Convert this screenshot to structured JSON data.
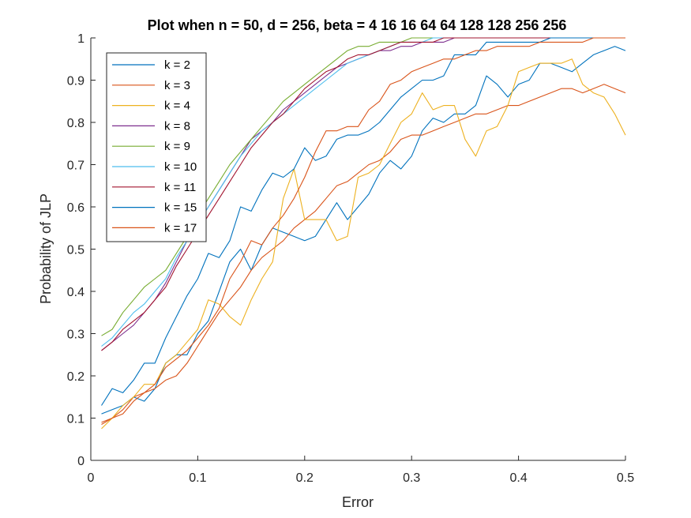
{
  "chart_data": {
    "type": "line",
    "title": "Plot when n = 50, d = 256, beta = 4   16   16   64   64   128   128   256   256",
    "xlabel": "Error",
    "ylabel": "Probability of JLP",
    "xlim": [
      0,
      0.5
    ],
    "ylim": [
      0,
      1
    ],
    "xticks": [
      "0",
      "0.1",
      "0.2",
      "0.3",
      "0.4",
      "0.5"
    ],
    "yticks": [
      "0",
      "0.1",
      "0.2",
      "0.3",
      "0.4",
      "0.5",
      "0.6",
      "0.7",
      "0.8",
      "0.9",
      "1"
    ],
    "grid": false,
    "legend_position": "top-left",
    "x": [
      0.01,
      0.02,
      0.03,
      0.04,
      0.05,
      0.06,
      0.07,
      0.08,
      0.09,
      0.1,
      0.11,
      0.12,
      0.13,
      0.14,
      0.15,
      0.16,
      0.17,
      0.18,
      0.19,
      0.2,
      0.21,
      0.22,
      0.23,
      0.24,
      0.25,
      0.26,
      0.27,
      0.28,
      0.29,
      0.3,
      0.31,
      0.32,
      0.33,
      0.34,
      0.35,
      0.36,
      0.37,
      0.38,
      0.39,
      0.4,
      0.41,
      0.42,
      0.43,
      0.44,
      0.45,
      0.46,
      0.47,
      0.48,
      0.49,
      0.5
    ],
    "series": [
      {
        "name": "k = 2",
        "color": "#0072BD",
        "values": [
          0.11,
          0.12,
          0.13,
          0.15,
          0.14,
          0.17,
          0.23,
          0.25,
          0.25,
          0.3,
          0.33,
          0.4,
          0.47,
          0.5,
          0.45,
          0.51,
          0.55,
          0.54,
          0.53,
          0.52,
          0.53,
          0.57,
          0.61,
          0.57,
          0.6,
          0.63,
          0.68,
          0.71,
          0.69,
          0.72,
          0.78,
          0.81,
          0.8,
          0.82,
          0.82,
          0.84,
          0.91,
          0.89,
          0.86,
          0.89,
          0.9,
          0.94,
          0.94,
          0.93,
          0.92,
          0.94,
          0.96,
          0.97,
          0.98,
          0.97
        ]
      },
      {
        "name": "k = 3",
        "color": "#D95319",
        "values": [
          0.085,
          0.1,
          0.12,
          0.15,
          0.16,
          0.17,
          0.19,
          0.2,
          0.23,
          0.27,
          0.31,
          0.35,
          0.38,
          0.41,
          0.45,
          0.48,
          0.5,
          0.52,
          0.55,
          0.57,
          0.59,
          0.62,
          0.65,
          0.66,
          0.68,
          0.7,
          0.71,
          0.73,
          0.76,
          0.77,
          0.77,
          0.78,
          0.79,
          0.8,
          0.81,
          0.82,
          0.82,
          0.83,
          0.84,
          0.84,
          0.85,
          0.86,
          0.87,
          0.88,
          0.88,
          0.87,
          0.88,
          0.89,
          0.88,
          0.87
        ]
      },
      {
        "name": "k = 4",
        "color": "#EDB120",
        "values": [
          0.075,
          0.1,
          0.13,
          0.15,
          0.18,
          0.18,
          0.23,
          0.25,
          0.28,
          0.31,
          0.38,
          0.37,
          0.34,
          0.32,
          0.38,
          0.43,
          0.47,
          0.62,
          0.69,
          0.57,
          0.57,
          0.57,
          0.52,
          0.53,
          0.67,
          0.68,
          0.7,
          0.75,
          0.8,
          0.82,
          0.87,
          0.83,
          0.84,
          0.84,
          0.76,
          0.72,
          0.78,
          0.79,
          0.84,
          0.92,
          0.93,
          0.94,
          0.94,
          0.94,
          0.95,
          0.89,
          0.87,
          0.86,
          0.82,
          0.77
        ]
      },
      {
        "name": "k = 8",
        "color": "#7E2F8E",
        "values": [
          0.26,
          0.28,
          0.3,
          0.32,
          0.35,
          0.38,
          0.42,
          0.47,
          0.52,
          0.56,
          0.6,
          0.64,
          0.68,
          0.72,
          0.76,
          0.78,
          0.8,
          0.83,
          0.85,
          0.87,
          0.89,
          0.91,
          0.93,
          0.94,
          0.95,
          0.96,
          0.97,
          0.97,
          0.98,
          0.98,
          0.99,
          0.99,
          0.99,
          1,
          1,
          1,
          1,
          1,
          1,
          1,
          1,
          1,
          1,
          1,
          1,
          1,
          1,
          1,
          1,
          1
        ]
      },
      {
        "name": "k = 9",
        "color": "#77AC30",
        "values": [
          0.295,
          0.31,
          0.35,
          0.38,
          0.41,
          0.43,
          0.45,
          0.49,
          0.53,
          0.58,
          0.62,
          0.66,
          0.7,
          0.73,
          0.76,
          0.79,
          0.82,
          0.85,
          0.87,
          0.89,
          0.91,
          0.93,
          0.95,
          0.97,
          0.98,
          0.98,
          0.99,
          0.99,
          0.99,
          1,
          1,
          1,
          1,
          1,
          1,
          1,
          1,
          1,
          1,
          1,
          1,
          1,
          1,
          1,
          1,
          1,
          1,
          1,
          1,
          1
        ]
      },
      {
        "name": "k = 10",
        "color": "#4DBEEE",
        "values": [
          0.27,
          0.29,
          0.32,
          0.35,
          0.37,
          0.4,
          0.43,
          0.48,
          0.52,
          0.56,
          0.6,
          0.64,
          0.68,
          0.72,
          0.75,
          0.78,
          0.8,
          0.82,
          0.84,
          0.86,
          0.88,
          0.9,
          0.92,
          0.94,
          0.95,
          0.96,
          0.97,
          0.98,
          0.99,
          0.99,
          0.99,
          1,
          1,
          1,
          1,
          1,
          1,
          1,
          1,
          1,
          1,
          1,
          1,
          1,
          1,
          1,
          1,
          1,
          1,
          1
        ]
      },
      {
        "name": "k = 11",
        "color": "#A2142F",
        "values": [
          0.26,
          0.28,
          0.31,
          0.33,
          0.35,
          0.38,
          0.41,
          0.46,
          0.5,
          0.54,
          0.58,
          0.62,
          0.66,
          0.7,
          0.74,
          0.77,
          0.8,
          0.82,
          0.85,
          0.88,
          0.9,
          0.92,
          0.93,
          0.95,
          0.96,
          0.96,
          0.97,
          0.98,
          0.99,
          0.99,
          0.99,
          0.99,
          1,
          1,
          1,
          1,
          1,
          1,
          1,
          1,
          1,
          1,
          1,
          1,
          1,
          1,
          1,
          1,
          1,
          1
        ]
      },
      {
        "name": "k = 15",
        "color": "#0072BD",
        "values": [
          0.13,
          0.17,
          0.16,
          0.19,
          0.23,
          0.23,
          0.29,
          0.34,
          0.39,
          0.43,
          0.49,
          0.48,
          0.52,
          0.6,
          0.59,
          0.64,
          0.68,
          0.67,
          0.69,
          0.74,
          0.71,
          0.72,
          0.76,
          0.77,
          0.77,
          0.78,
          0.8,
          0.83,
          0.86,
          0.88,
          0.9,
          0.9,
          0.91,
          0.96,
          0.96,
          0.96,
          0.99,
          0.99,
          0.99,
          0.99,
          0.99,
          0.99,
          1,
          1,
          1,
          1,
          1,
          1,
          1,
          1
        ]
      },
      {
        "name": "k = 17",
        "color": "#D95319",
        "values": [
          0.09,
          0.1,
          0.11,
          0.14,
          0.16,
          0.18,
          0.22,
          0.24,
          0.26,
          0.29,
          0.32,
          0.36,
          0.43,
          0.47,
          0.52,
          0.51,
          0.55,
          0.58,
          0.62,
          0.67,
          0.73,
          0.78,
          0.78,
          0.79,
          0.79,
          0.83,
          0.85,
          0.89,
          0.9,
          0.92,
          0.93,
          0.94,
          0.95,
          0.95,
          0.96,
          0.97,
          0.97,
          0.98,
          0.98,
          0.98,
          0.98,
          0.99,
          0.99,
          0.99,
          0.99,
          0.99,
          1,
          1,
          1,
          1
        ]
      }
    ]
  }
}
